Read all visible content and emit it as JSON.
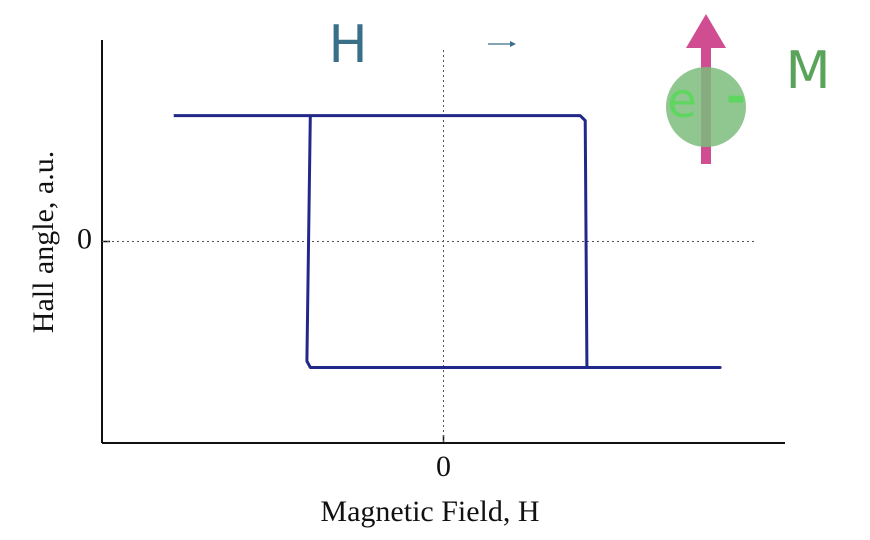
{
  "chart_data": {
    "type": "line",
    "xlabel": "Magnetic Field, H",
    "ylabel": "Hall angle, a.u.",
    "x": [
      -7.9,
      4.0,
      4.15,
      4.2,
      8.1,
      -3.9,
      -4.0,
      -3.9
    ],
    "values": [
      1,
      1,
      0.96,
      -1,
      -1,
      -1,
      -0.95,
      1
    ],
    "color": "#22288a",
    "xlim": [
      -10,
      10
    ],
    "ylim": [
      -1.6,
      1.6
    ],
    "xticks": [
      0
    ],
    "yticks": [
      0
    ],
    "zero_lines": true,
    "annotations": {
      "field": "H",
      "moment": "M",
      "electron": "e",
      "sign": "-"
    }
  }
}
